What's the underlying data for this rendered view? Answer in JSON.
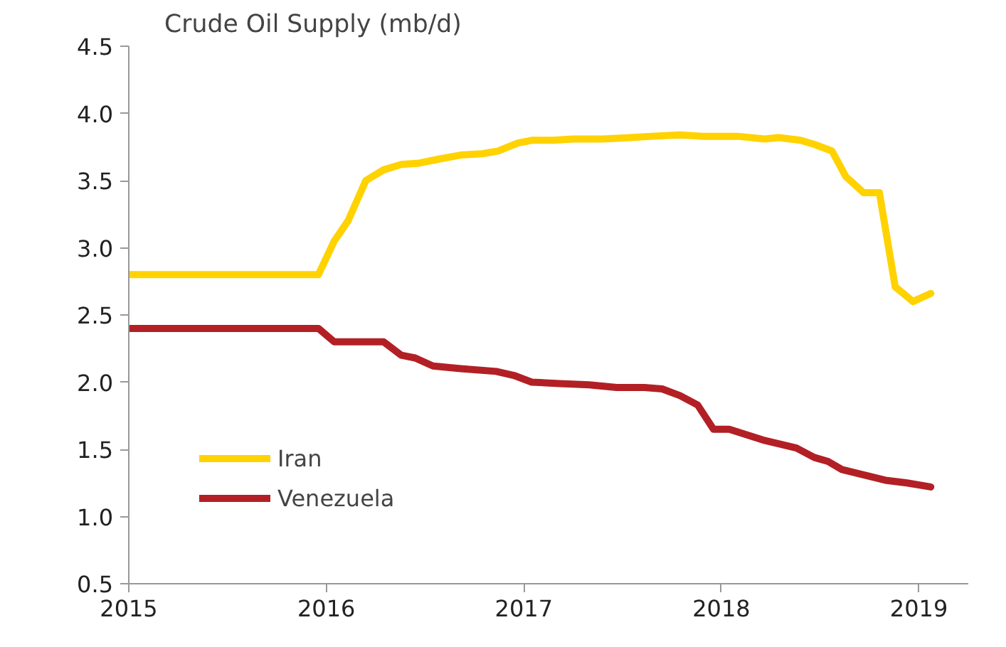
{
  "chart_data": {
    "type": "line",
    "title": "Crude Oil Supply (mb/d)",
    "xlim": [
      2015,
      2019.25
    ],
    "xticks": [
      2015,
      2016,
      2017,
      2018,
      2019
    ],
    "ylim": [
      0.5,
      4.5
    ],
    "yticks": [
      0.5,
      {
        "value": 1,
        "label": "1.0"
      },
      1.5,
      {
        "value": 2,
        "label": "2.0"
      },
      2.5,
      {
        "value": 3,
        "label": "3.0"
      },
      3.5,
      {
        "value": 4,
        "label": "4.0"
      },
      4.5
    ],
    "grid": false,
    "legend": "bottom left",
    "line_style": "solid",
    "marker": "none",
    "series": [
      {
        "name": "Iran",
        "color": "#ffd200",
        "x": [
          2015,
          2015.96,
          2016.04,
          2016.11,
          2016.2,
          2016.29,
          2016.38,
          2016.47,
          2016.57,
          2016.68,
          2016.79,
          2016.87,
          2016.97,
          2017.04,
          2017.15,
          2017.25,
          2017.4,
          2017.54,
          2017.65,
          2017.79,
          2017.9,
          2017.98,
          2018.08,
          2018.22,
          2018.29,
          2018.4,
          2018.47,
          2018.56,
          2018.63,
          2018.72,
          2018.8,
          2018.88,
          2018.97,
          2019.06
        ],
        "values": [
          2.8,
          2.8,
          3.05,
          3.2,
          3.5,
          3.58,
          3.62,
          3.63,
          3.66,
          3.69,
          3.7,
          3.72,
          3.78,
          3.8,
          3.8,
          3.81,
          3.81,
          3.82,
          3.83,
          3.84,
          3.83,
          3.83,
          3.83,
          3.81,
          3.82,
          3.8,
          3.77,
          3.72,
          3.53,
          3.41,
          3.41,
          2.71,
          2.6,
          2.66
        ]
      },
      {
        "name": "Venezuela",
        "color": "#b22025",
        "x": [
          2015,
          2015.96,
          2016.04,
          2016.29,
          2016.38,
          2016.45,
          2016.54,
          2016.68,
          2016.86,
          2016.95,
          2017.04,
          2017.18,
          2017.33,
          2017.47,
          2017.61,
          2017.7,
          2017.79,
          2017.88,
          2017.96,
          2018.04,
          2018.21,
          2018.38,
          2018.47,
          2018.54,
          2018.61,
          2018.72,
          2018.83,
          2018.94,
          2019.06
        ],
        "values": [
          2.4,
          2.4,
          2.3,
          2.3,
          2.2,
          2.18,
          2.12,
          2.1,
          2.08,
          2.05,
          2.0,
          1.99,
          1.98,
          1.96,
          1.96,
          1.95,
          1.9,
          1.83,
          1.65,
          1.65,
          1.57,
          1.51,
          1.44,
          1.41,
          1.35,
          1.31,
          1.27,
          1.25,
          1.22
        ]
      }
    ]
  }
}
